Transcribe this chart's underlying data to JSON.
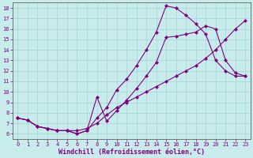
{
  "title": "",
  "xlabel": "Windchill (Refroidissement éolien,°C)",
  "ylabel": "",
  "bg_color": "#c8ecec",
  "line_color": "#800080",
  "grid_color": "#a0d4d4",
  "xlim": [
    -0.5,
    23.5
  ],
  "ylim": [
    5.5,
    18.5
  ],
  "xticks": [
    0,
    1,
    2,
    3,
    4,
    5,
    6,
    7,
    8,
    9,
    10,
    11,
    12,
    13,
    14,
    15,
    16,
    17,
    18,
    19,
    20,
    21,
    22,
    23
  ],
  "yticks": [
    6,
    7,
    8,
    9,
    10,
    11,
    12,
    13,
    14,
    15,
    16,
    17,
    18
  ],
  "line1_x": [
    0,
    1,
    2,
    3,
    4,
    5,
    6,
    7,
    8,
    9,
    10,
    11,
    12,
    13,
    14,
    15,
    16,
    17,
    18,
    19,
    20,
    21,
    22,
    23
  ],
  "line1_y": [
    7.5,
    7.3,
    6.7,
    6.5,
    6.3,
    6.3,
    6.0,
    6.3,
    9.5,
    7.2,
    8.2,
    9.2,
    10.3,
    11.5,
    12.8,
    15.2,
    15.3,
    15.5,
    15.7,
    16.3,
    16.0,
    13.0,
    11.8,
    11.5
  ],
  "line2_x": [
    0,
    1,
    2,
    3,
    4,
    5,
    6,
    7,
    8,
    9,
    10,
    11,
    12,
    13,
    14,
    15,
    16,
    17,
    18,
    19,
    20,
    21,
    22,
    23
  ],
  "line2_y": [
    7.5,
    7.3,
    6.7,
    6.5,
    6.3,
    6.3,
    6.0,
    6.3,
    7.5,
    8.5,
    10.2,
    11.2,
    12.5,
    14.0,
    15.7,
    18.2,
    18.0,
    17.3,
    16.5,
    15.5,
    13.0,
    12.0,
    11.5,
    11.5
  ],
  "line3_x": [
    0,
    1,
    2,
    3,
    4,
    5,
    6,
    7,
    8,
    9,
    10,
    11,
    12,
    13,
    14,
    15,
    16,
    17,
    18,
    19,
    20,
    21,
    22,
    23
  ],
  "line3_y": [
    7.5,
    7.3,
    6.7,
    6.5,
    6.3,
    6.3,
    6.3,
    6.5,
    7.0,
    7.8,
    8.5,
    9.0,
    9.5,
    10.0,
    10.5,
    11.0,
    11.5,
    12.0,
    12.5,
    13.2,
    14.0,
    15.0,
    16.0,
    16.8
  ],
  "marker": "D",
  "marker_size": 2.0,
  "line_width": 0.8,
  "xlabel_fontsize": 6,
  "tick_fontsize": 5,
  "xlabel_color": "#800080",
  "tick_color": "#800080",
  "spine_color": "#606060"
}
